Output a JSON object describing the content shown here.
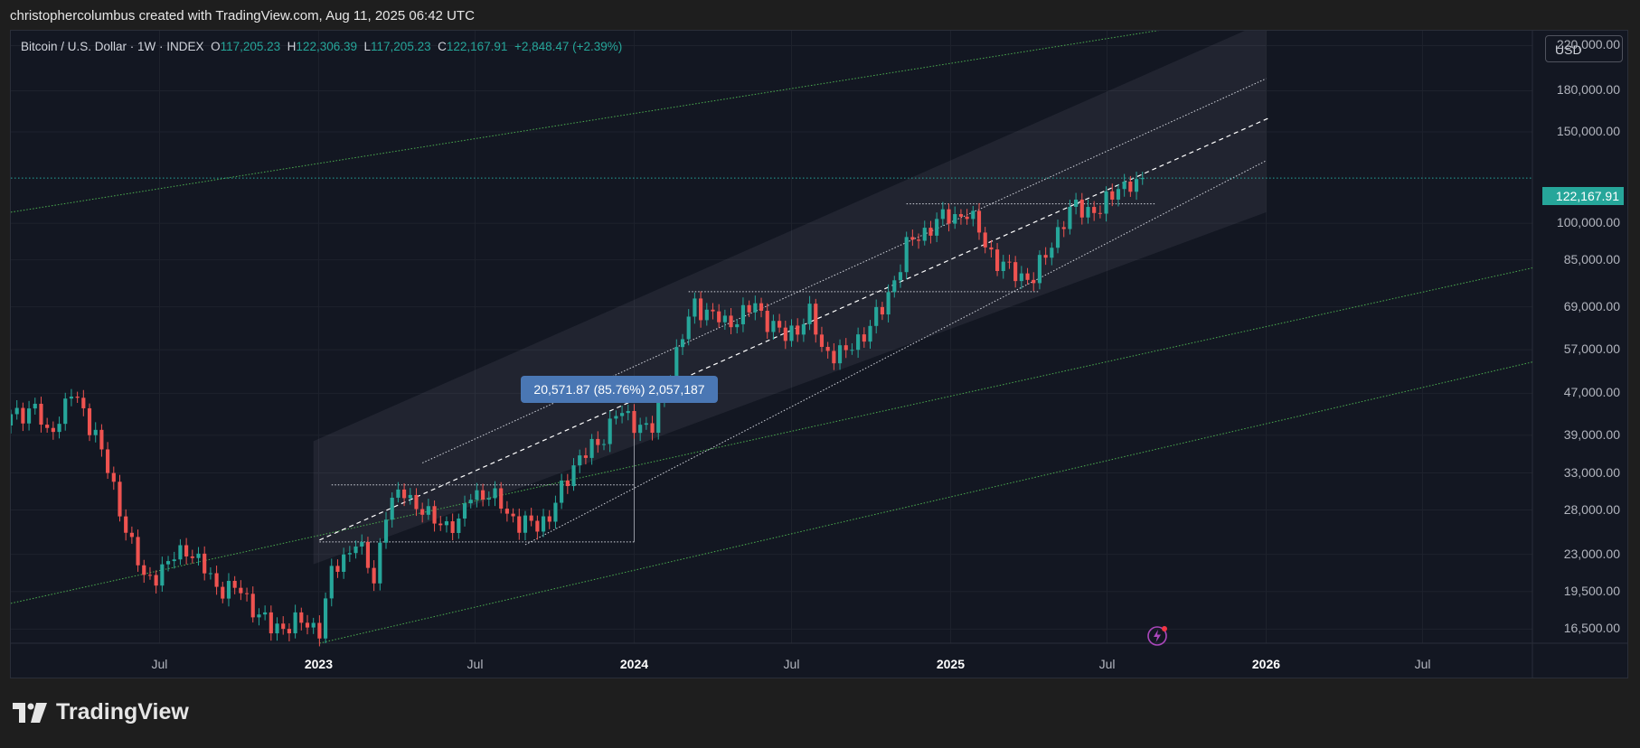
{
  "header": {
    "caption": "christophercolumbus created with TradingView.com, Aug 11, 2025 06:42 UTC"
  },
  "legend": {
    "symbol": "Bitcoin / U.S. Dollar · 1W · INDEX",
    "open_key": "O",
    "open": "117,205.23",
    "high_key": "H",
    "high": "122,306.39",
    "low_key": "L",
    "low": "117,205.23",
    "close_key": "C",
    "close": "122,167.91",
    "change": "+2,848.47 (+2.39%)"
  },
  "currency_button": "USD",
  "price_tag": "122,167.91",
  "measure_label": "20,571.87 (85.76%) 2,057,187",
  "colors": {
    "up": "#26a69a",
    "down": "#ef5350",
    "background": "#131722",
    "channel_line": "#4caf50",
    "measure": "#4a77b4"
  },
  "icons": {
    "flash": "lightning-icon",
    "brand": "tradingview-logo-icon"
  },
  "brand": {
    "text": "TradingView"
  },
  "chart_data": {
    "type": "candlestick",
    "title": "Bitcoin / U.S. Dollar · 1W · INDEX",
    "scale": "log",
    "ylim": [
      15500,
      235000
    ],
    "y_ticks": [
      "220,000.00",
      "180,000.00",
      "150,000.00",
      "122,167.91",
      "100,000.00",
      "85,000.00",
      "69,000.00",
      "57,000.00",
      "47,000.00",
      "39,000.00",
      "33,000.00",
      "28,000.00",
      "23,000.00",
      "19,500.00",
      "16,500.00"
    ],
    "y_tick_values": [
      220000,
      180000,
      150000,
      122167.91,
      100000,
      85000,
      69000,
      57000,
      47000,
      39000,
      33000,
      28000,
      23000,
      19500,
      16500
    ],
    "x_ticks": [
      "Jul",
      "2023",
      "Jul",
      "2024",
      "Jul",
      "2025",
      "Jul",
      "2026",
      "Jul"
    ],
    "x_tick_dates": [
      "2022-07-01",
      "2023-01-01",
      "2023-07-01",
      "2024-01-01",
      "2024-07-01",
      "2025-01-01",
      "2025-07-01",
      "2026-01-01",
      "2026-07-01"
    ],
    "x_range": [
      "2022-01-10",
      "2026-11-05"
    ],
    "grid": true,
    "last_close": 122167.91,
    "price_path": [
      [
        "2022-01-10",
        42000
      ],
      [
        "2022-02-07",
        44500
      ],
      [
        "2022-02-21",
        38500
      ],
      [
        "2022-03-21",
        47000
      ],
      [
        "2022-04-18",
        39500
      ],
      [
        "2022-05-09",
        30500
      ],
      [
        "2022-06-13",
        20500
      ],
      [
        "2022-07-04",
        21500
      ],
      [
        "2022-08-01",
        23800
      ],
      [
        "2022-09-05",
        20000
      ],
      [
        "2022-10-03",
        19500
      ],
      [
        "2022-11-07",
        16500
      ],
      [
        "2022-12-05",
        17000
      ],
      [
        "2023-01-02",
        16600
      ],
      [
        "2023-01-16",
        21000
      ],
      [
        "2023-02-13",
        24500
      ],
      [
        "2023-03-06",
        20500
      ],
      [
        "2023-03-20",
        28000
      ],
      [
        "2023-04-10",
        30500
      ],
      [
        "2023-05-08",
        27000
      ],
      [
        "2023-06-12",
        26000
      ],
      [
        "2023-06-26",
        30500
      ],
      [
        "2023-07-31",
        29000
      ],
      [
        "2023-08-21",
        26000
      ],
      [
        "2023-09-25",
        27000
      ],
      [
        "2023-10-23",
        34500
      ],
      [
        "2023-11-20",
        37500
      ],
      [
        "2023-12-11",
        43000
      ],
      [
        "2024-01-22",
        40000
      ],
      [
        "2024-02-12",
        52000
      ],
      [
        "2024-03-11",
        70000
      ],
      [
        "2024-04-15",
        64000
      ],
      [
        "2024-05-20",
        69000
      ],
      [
        "2024-06-24",
        60000
      ],
      [
        "2024-07-22",
        67000
      ],
      [
        "2024-08-05",
        57000
      ],
      [
        "2024-09-02",
        56000
      ],
      [
        "2024-10-14",
        68000
      ],
      [
        "2024-11-11",
        90000
      ],
      [
        "2024-12-16",
        101000
      ],
      [
        "2025-01-20",
        105000
      ],
      [
        "2025-02-24",
        84000
      ],
      [
        "2025-03-10",
        81000
      ],
      [
        "2025-04-07",
        78000
      ],
      [
        "2025-05-05",
        97000
      ],
      [
        "2025-05-26",
        108000
      ],
      [
        "2025-06-23",
        105000
      ],
      [
        "2025-07-14",
        119000
      ],
      [
        "2025-08-04",
        117205
      ],
      [
        "2025-08-11",
        122168
      ]
    ],
    "channel_zone": {
      "start": [
        "2022-12-26",
        22000,
        38000
      ],
      "end": [
        "2026-01-01",
        105000,
        245000
      ]
    },
    "regression_channel": {
      "upper": [
        [
          "2023-05-01",
          34500
        ],
        [
          "2026-01-01",
          190000
        ]
      ],
      "middle": [
        [
          "2023-01-02",
          24500
        ],
        [
          "2026-01-06",
          160000
        ]
      ],
      "lower": [
        [
          "2023-08-28",
          24000
        ],
        [
          "2026-01-01",
          132000
        ]
      ]
    },
    "long_channel": {
      "upper": [
        [
          "2022-01-10",
          105000
        ],
        [
          "2025-10-01",
          240000
        ]
      ],
      "middle": [
        [
          "2022-01-10",
          18500
        ],
        [
          "2026-11-05",
          82000
        ]
      ],
      "lower": [
        [
          "2023-01-02",
          15500
        ],
        [
          "2026-11-05",
          54000
        ]
      ]
    },
    "horizontal_levels": [
      {
        "from": "2023-01-02",
        "to": "2024-01-01",
        "value": 24300
      },
      {
        "from": "2023-01-16",
        "to": "2024-01-01",
        "value": 31300
      },
      {
        "from": "2024-03-04",
        "to": "2025-04-14",
        "value": 73800
      },
      {
        "from": "2024-11-11",
        "to": "2025-08-25",
        "value": 109000
      }
    ],
    "measure": {
      "date": "2024-01-01",
      "from": 24300,
      "to": 44800
    }
  }
}
